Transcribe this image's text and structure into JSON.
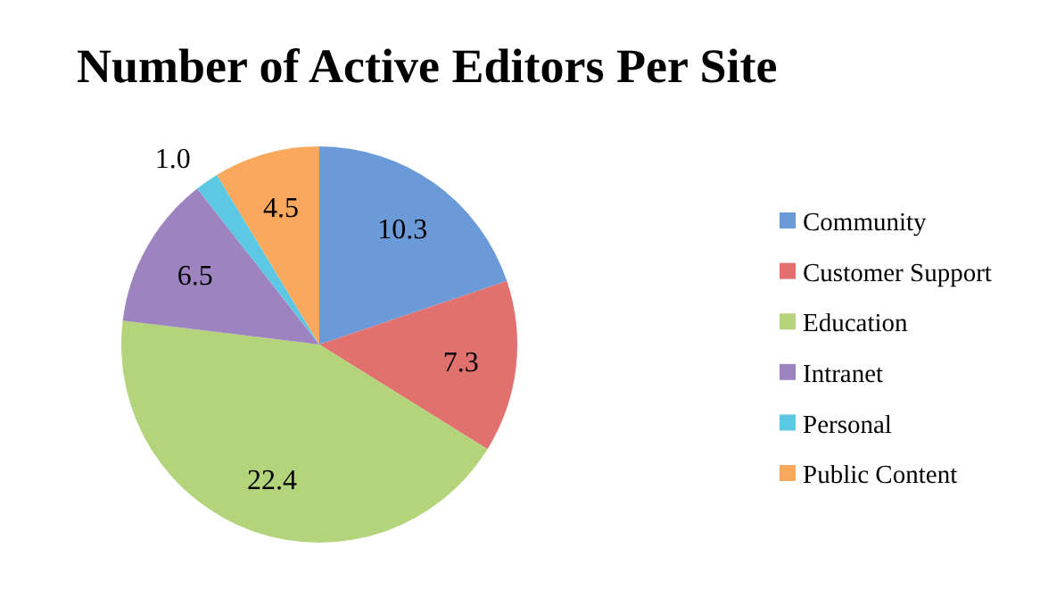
{
  "chart_data": {
    "type": "pie",
    "title": "Number of Active Editors Per Site",
    "categories": [
      "Community",
      "Customer Support",
      "Education",
      "Intranet",
      "Personal",
      "Public Content"
    ],
    "values": [
      10.3,
      7.3,
      22.4,
      6.5,
      1.0,
      4.5
    ],
    "colors": [
      "#6a9ad8",
      "#e0716e",
      "#b3d47a",
      "#9d84c0",
      "#5cc8e4",
      "#f9a85e"
    ],
    "value_labels": [
      "10.3",
      "7.3",
      "22.4",
      "6.5",
      "1.0",
      "4.5"
    ],
    "legend": "right"
  }
}
